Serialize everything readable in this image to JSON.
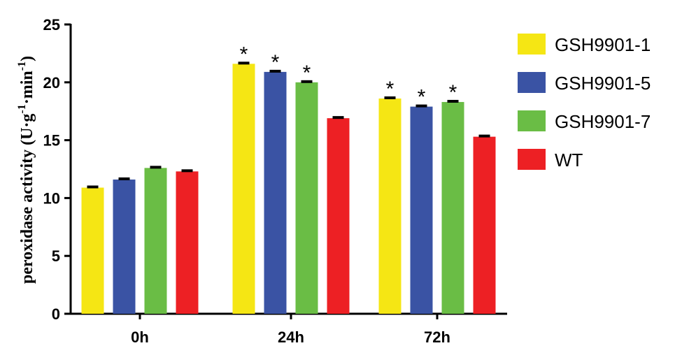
{
  "chart_data": {
    "type": "bar",
    "title": "",
    "xlabel": "",
    "ylabel": "peroxidase activity (U·g⁻¹·min⁻¹)",
    "ylabel_parts": {
      "main": "peroxidase activity (U·g",
      "sup1": "-1",
      "mid": "·min",
      "sup2": "-1",
      "end": ")"
    },
    "ylim": [
      0,
      25
    ],
    "yticks": [
      0,
      5,
      10,
      15,
      20,
      25
    ],
    "categories": [
      "0h",
      "24h",
      "72h"
    ],
    "grid": false,
    "legend_position": "right",
    "significance_marker": "*",
    "series": [
      {
        "name": "GSH9901-1",
        "color": "#f5e614",
        "values": [
          10.9,
          21.6,
          18.6
        ],
        "significant": [
          false,
          true,
          true
        ]
      },
      {
        "name": "GSH9901-5",
        "color": "#3a53a4",
        "values": [
          11.6,
          20.9,
          17.9
        ],
        "significant": [
          false,
          true,
          true
        ]
      },
      {
        "name": "GSH9901-7",
        "color": "#6abd45",
        "values": [
          12.6,
          20.0,
          18.3
        ],
        "significant": [
          false,
          true,
          true
        ]
      },
      {
        "name": "WT",
        "color": "#ed2024",
        "values": [
          12.3,
          16.9,
          15.3
        ],
        "significant": [
          false,
          false,
          false
        ]
      }
    ]
  }
}
